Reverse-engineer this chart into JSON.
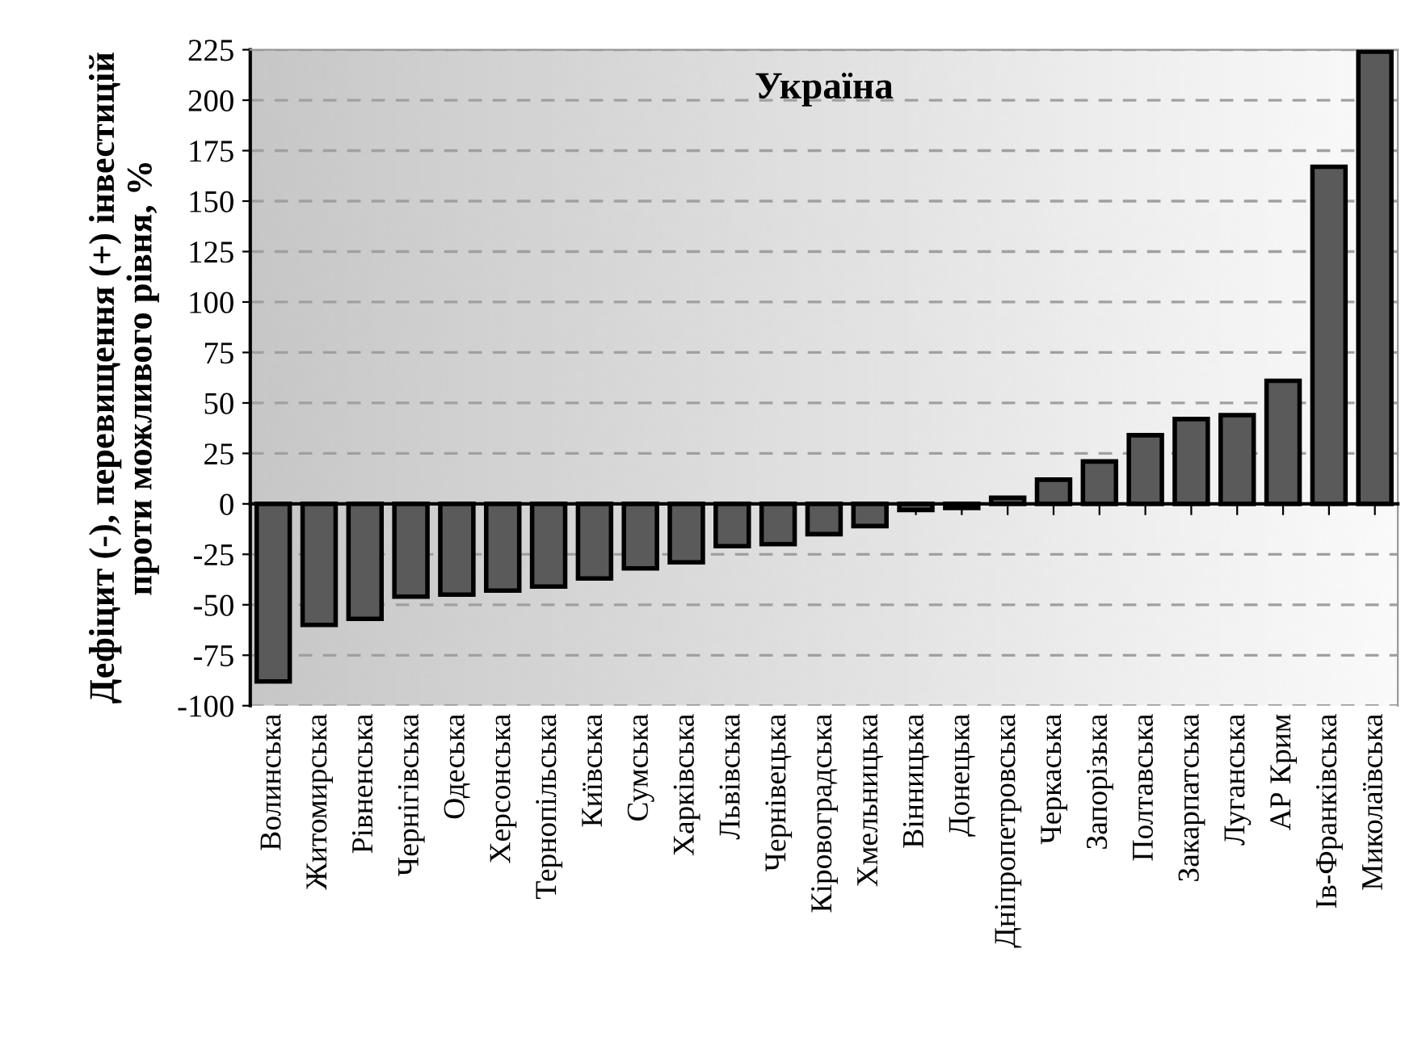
{
  "chart_data": {
    "type": "bar",
    "title": "Україна",
    "ylabel": "Дефіцит (-), перевищення (+) інвестицій\nпроти можливого рівня, %",
    "categories": [
      "Волинська",
      "Житомирська",
      "Рівненська",
      "Чернігівська",
      "Одеська",
      "Херсонська",
      "Тернопільська",
      "Київська",
      "Сумська",
      "Харківська",
      "Львівська",
      "Чернівецька",
      "Кіровоградська",
      "Хмельницька",
      "Вінницька",
      "Донецька",
      "Дніпропетровська",
      "Черкаська",
      "Запорізька",
      "Полтавська",
      "Закарпатська",
      "Луганська",
      "АР Крим",
      "Ів-Франківська",
      "Миколаївська"
    ],
    "values": [
      -88,
      -60,
      -57,
      -46,
      -45,
      -43,
      -41,
      -37,
      -32,
      -29,
      -21,
      -20,
      -15,
      -11,
      -3,
      -2,
      3,
      12,
      21,
      34,
      42,
      44,
      61,
      167,
      224
    ],
    "color": "#5a5a5a",
    "ylim": [
      -100,
      225
    ],
    "yticks": [
      -100,
      -75,
      -50,
      -25,
      0,
      25,
      50,
      75,
      100,
      125,
      150,
      175,
      200,
      225
    ],
    "grid": "y"
  }
}
